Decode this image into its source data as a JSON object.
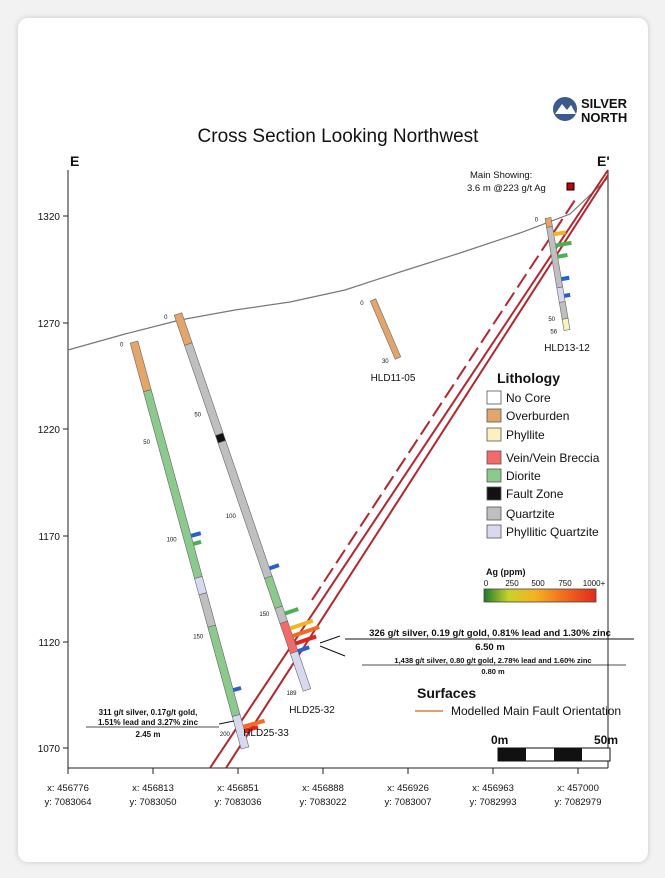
{
  "title": "Cross Section Looking Northwest",
  "logo": {
    "line1": "SILVER",
    "line2": "NORTH",
    "color": "#3c5a8c"
  },
  "section_labels": {
    "left": "E",
    "right": "E'"
  },
  "elevation_ticks": [
    "1320",
    "1270",
    "1220",
    "1170",
    "1120",
    "1070"
  ],
  "easting_ticks": [
    {
      "x": "x: 456776",
      "y": "y: 7083064"
    },
    {
      "x": "x: 456813",
      "y": "y: 7083050"
    },
    {
      "x": "x: 456851",
      "y": "y: 7083036"
    },
    {
      "x": "x: 456888",
      "y": "y: 7083022"
    },
    {
      "x": "x: 456926",
      "y": "y: 7083007"
    },
    {
      "x": "x: 456963",
      "y": "y: 7082993"
    },
    {
      "x": "x: 457000",
      "y": "y: 7082979"
    }
  ],
  "main_showing": {
    "line1": "Main Showing:",
    "line2": "3.6 m @223 g/t Ag"
  },
  "drillholes": [
    {
      "name": "HLD11-05",
      "depth_labels": [
        "0",
        "30"
      ]
    },
    {
      "name": "HLD13-12",
      "depth_labels": [
        "0",
        "50",
        "56"
      ]
    },
    {
      "name": "HLD25-32",
      "depth_labels": [
        "0",
        "50",
        "100",
        "150",
        "189"
      ]
    },
    {
      "name": "HLD25-33",
      "depth_labels": [
        "0",
        "50",
        "100",
        "150",
        "200"
      ]
    }
  ],
  "intercepts": {
    "hld25_32_a": {
      "line1": "326 g/t silver, 0.19 g/t gold, 0.81% lead and 1.30% zinc",
      "line2": "6.50 m"
    },
    "hld25_32_b": {
      "line1": "1,438 g/t silver, 0.80 g/t gold, 2.78% lead and 1.60% zinc",
      "line2": "0.80 m"
    },
    "hld25_33": {
      "line1": "311 g/t silver, 0.17g/t gold,",
      "line2": "1.51% lead and 3.27% zinc",
      "line3": "2.45 m"
    }
  },
  "lithology_legend": {
    "title": "Lithology",
    "items": [
      {
        "label": "No Core",
        "color": "#ffffff"
      },
      {
        "label": "Overburden",
        "color": "#e3a56a"
      },
      {
        "label": "Phyllite",
        "color": "#fbf0c0"
      },
      {
        "label": "Vein/Vein Breccia",
        "color": "#f26b6b"
      },
      {
        "label": "Diorite",
        "color": "#8cc98c"
      },
      {
        "label": "Fault Zone",
        "color": "#111111"
      },
      {
        "label": "Quartzite",
        "color": "#bfbfbf"
      },
      {
        "label": "Phyllitic Quartzite",
        "color": "#d8d8f0"
      }
    ]
  },
  "ag_scale": {
    "title": "Ag (ppm)",
    "ticks": [
      "0",
      "250",
      "500",
      "750",
      "1000+"
    ]
  },
  "surfaces": {
    "title": "Surfaces",
    "item": "Modelled Main Fault Orientation",
    "color": "#d98040"
  },
  "scale_bar": {
    "left": "0m",
    "right": "50m"
  }
}
